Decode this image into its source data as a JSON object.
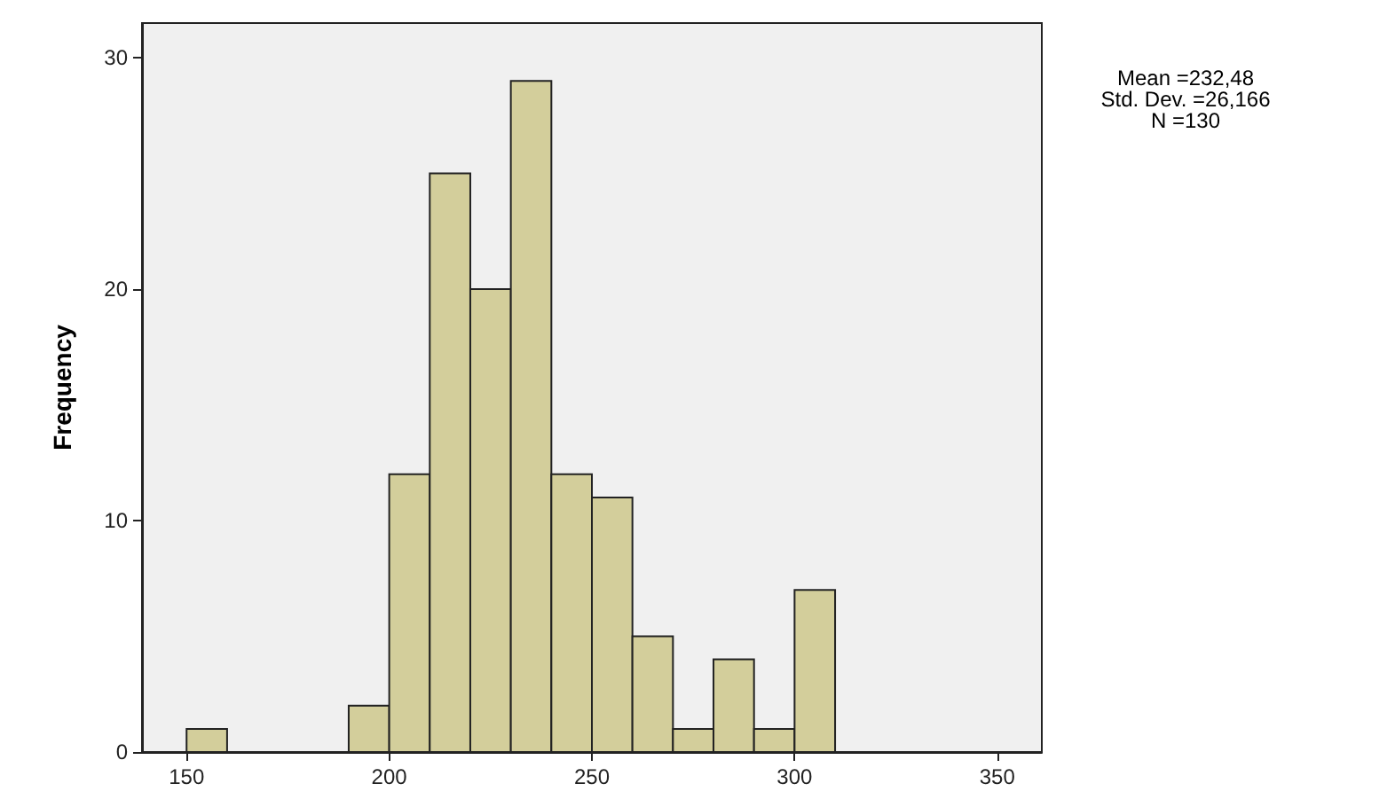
{
  "chart_data": {
    "type": "histogram",
    "ylabel": "Frequency",
    "bins": [
      150,
      160,
      170,
      180,
      190,
      200,
      210,
      220,
      230,
      240,
      250,
      260,
      270,
      280,
      290,
      300,
      310
    ],
    "values": [
      1,
      0,
      0,
      0,
      2,
      12,
      25,
      20,
      29,
      12,
      11,
      5,
      1,
      4,
      1,
      7
    ],
    "color": "#d3ce9b",
    "xlim": [
      139,
      361
    ],
    "xticks": [
      150,
      200,
      250,
      300,
      350
    ],
    "ylim": [
      0,
      31.5
    ],
    "yticks": [
      0,
      10,
      20,
      30
    ],
    "grid": false,
    "annotations": [
      "Mean =232,48",
      "Std. Dev. =26,166",
      "N =130"
    ]
  }
}
